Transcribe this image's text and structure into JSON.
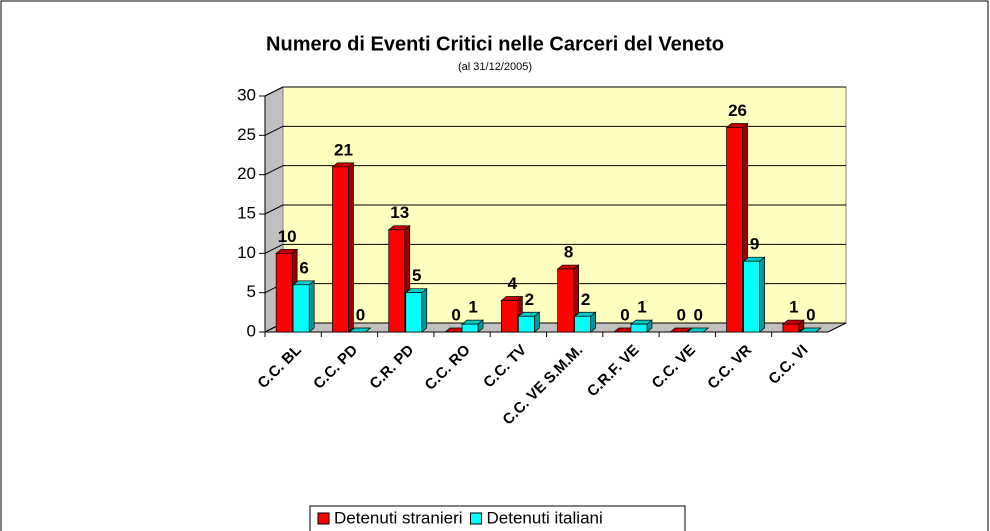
{
  "chart_data": {
    "type": "bar3d",
    "title": "Numero di Eventi Critici nelle Carceri del Veneto",
    "subtitle": "(al 31/12/2005)",
    "categories": [
      "C.C. BL",
      "C.C. PD",
      "C.R. PD",
      "C.C. RO",
      "C.C. TV",
      "C.C. VE S.M.M.",
      "C.R.F. VE",
      "C.C. VE",
      "C.C. VR",
      "C.C. VI"
    ],
    "series": [
      {
        "name": "Detenuti stranieri",
        "color": "#ff0000",
        "values": [
          10,
          21,
          13,
          0,
          4,
          8,
          0,
          0,
          26,
          1
        ]
      },
      {
        "name": "Detenuti italiani",
        "color": "#00ffff",
        "values": [
          6,
          0,
          5,
          1,
          2,
          2,
          1,
          0,
          9,
          0
        ]
      }
    ],
    "ylim": [
      0,
      30
    ],
    "yticks": [
      0,
      5,
      10,
      15,
      20,
      25,
      30
    ],
    "grid": true,
    "wall_color": "#ffffc0",
    "legend": "bottom"
  }
}
